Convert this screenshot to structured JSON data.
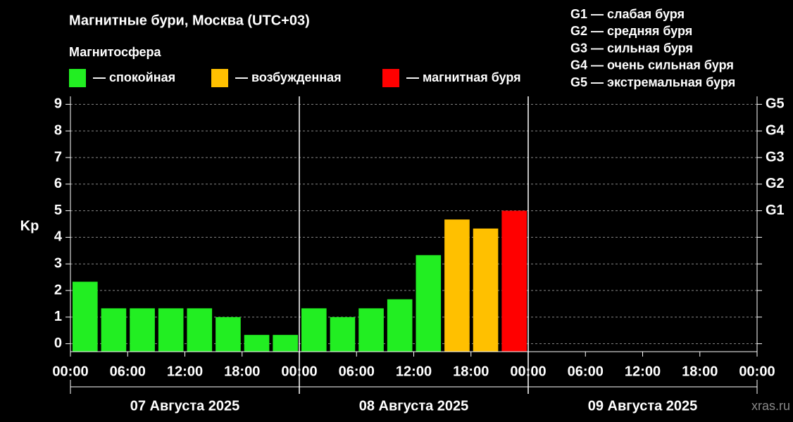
{
  "chart_data": {
    "type": "bar",
    "title": "Магнитные бури, Москва (UTC+03)",
    "subtitle": "Магнитосфера",
    "legend": [
      {
        "label": "— спокойная",
        "color": "#22ee22"
      },
      {
        "label": "— возбужденная",
        "color": "#ffc000"
      },
      {
        "label": "— магнитная буря",
        "color": "#ff0000"
      }
    ],
    "storm_levels": [
      "G1 — слабая буря",
      "G2 — средняя буря",
      "G3 — сильная буря",
      "G4 — очень сильная буря",
      "G5 — экстремальная буря"
    ],
    "ylabel": "Kp",
    "x": [
      0,
      3,
      6,
      9,
      12,
      15,
      18,
      21,
      24,
      27,
      30,
      33,
      36,
      39,
      42,
      45
    ],
    "bar_width": 3,
    "values": [
      2.33,
      1.33,
      1.33,
      1.33,
      1.33,
      1,
      0.33,
      0.33,
      1.33,
      1,
      1.33,
      1.67,
      3.33,
      4.67,
      4.33,
      5
    ],
    "colors": [
      "#22ee22",
      "#22ee22",
      "#22ee22",
      "#22ee22",
      "#22ee22",
      "#22ee22",
      "#22ee22",
      "#22ee22",
      "#22ee22",
      "#22ee22",
      "#22ee22",
      "#22ee22",
      "#22ee22",
      "#ffc000",
      "#ffc000",
      "#ff0000"
    ],
    "xlim": [
      0,
      72
    ],
    "xticks": [
      {
        "value": 0,
        "label": "00:00"
      },
      {
        "value": 6,
        "label": "06:00"
      },
      {
        "value": 12,
        "label": "12:00"
      },
      {
        "value": 18,
        "label": "18:00"
      },
      {
        "value": 24,
        "label": "00:00"
      },
      {
        "value": 30,
        "label": "06:00"
      },
      {
        "value": 36,
        "label": "12:00"
      },
      {
        "value": 42,
        "label": "18:00"
      },
      {
        "value": 48,
        "label": "00:00"
      },
      {
        "value": 54,
        "label": "06:00"
      },
      {
        "value": 60,
        "label": "12:00"
      },
      {
        "value": 66,
        "label": "18:00"
      },
      {
        "value": 72,
        "label": "00:00"
      }
    ],
    "day_dividers": [
      24,
      48
    ],
    "day_labels": [
      "07 Августа 2025",
      "08 Августа 2025",
      "09 Августа 2025"
    ],
    "ylim": [
      -0.3,
      9.3
    ],
    "yticks": [
      0,
      1,
      2,
      3,
      4,
      5,
      6,
      7,
      8,
      9
    ],
    "y2ticks": [
      {
        "value": 5,
        "label": "G1"
      },
      {
        "value": 6,
        "label": "G2"
      },
      {
        "value": 7,
        "label": "G3"
      },
      {
        "value": 8,
        "label": "G4"
      },
      {
        "value": 9,
        "label": "G5"
      }
    ],
    "grid": true,
    "watermark": "xras.ru"
  }
}
